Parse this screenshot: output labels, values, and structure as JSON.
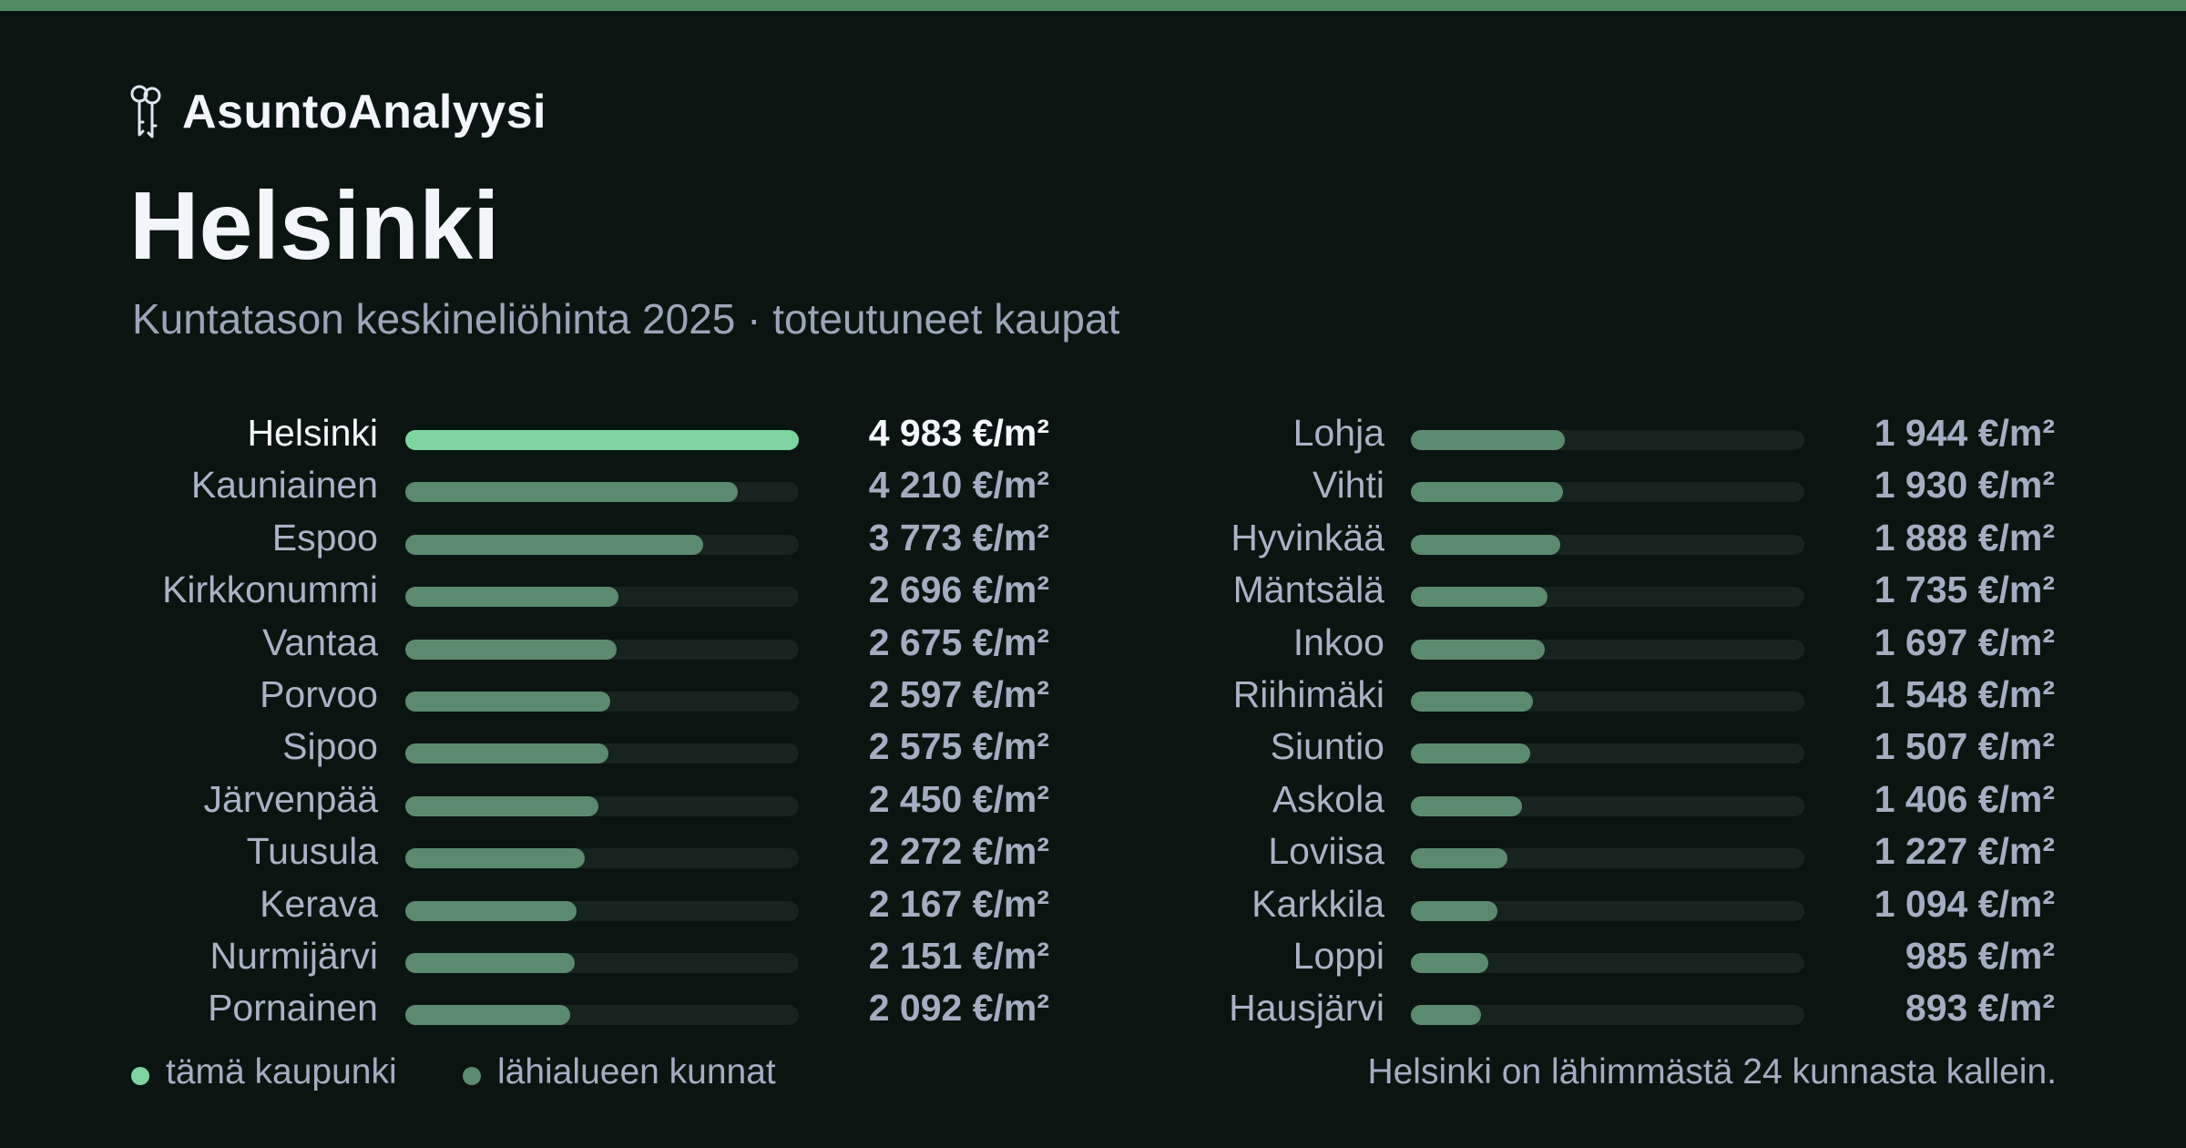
{
  "brand": {
    "name": "AsuntoAnalyysi",
    "icon": "keys-icon"
  },
  "title": "Helsinki",
  "subtitle": "Kuntatason keskineliöhinta 2025 · toteutuneet kaupat",
  "colors": {
    "background": "#0a1512",
    "top_bar": "#4f8a60",
    "highlight": "#7ed4a0",
    "others": "#5c8a6e",
    "track": "#16231f"
  },
  "chart_data": {
    "type": "bar",
    "orientation": "horizontal",
    "unit": "€/m²",
    "highlight": "Helsinki",
    "max": 4983,
    "categories": [
      "Helsinki",
      "Kauniainen",
      "Espoo",
      "Kirkkonummi",
      "Vantaa",
      "Porvoo",
      "Sipoo",
      "Järvenpää",
      "Tuusula",
      "Kerava",
      "Nurmijärvi",
      "Pornainen",
      "Lohja",
      "Vihti",
      "Hyvinkää",
      "Mäntsälä",
      "Inkoo",
      "Riihimäki",
      "Siuntio",
      "Askola",
      "Loviisa",
      "Karkkila",
      "Loppi",
      "Hausjärvi"
    ],
    "values": [
      4983,
      4210,
      3773,
      2696,
      2675,
      2597,
      2575,
      2450,
      2272,
      2167,
      2151,
      2092,
      1944,
      1930,
      1888,
      1735,
      1697,
      1548,
      1507,
      1406,
      1227,
      1094,
      985,
      893
    ],
    "labels": [
      "4 983 €/m²",
      "4 210 €/m²",
      "3 773 €/m²",
      "2 696 €/m²",
      "2 675 €/m²",
      "2 597 €/m²",
      "2 575 €/m²",
      "2 450 €/m²",
      "2 272 €/m²",
      "2 167 €/m²",
      "2 151 €/m²",
      "2 092 €/m²",
      "1 944 €/m²",
      "1 930 €/m²",
      "1 888 €/m²",
      "1 735 €/m²",
      "1 697 €/m²",
      "1 548 €/m²",
      "1 507 €/m²",
      "1 406 €/m²",
      "1 227 €/m²",
      "1 094 €/m²",
      "985 €/m²",
      "893 €/m²"
    ]
  },
  "legend": {
    "this_city": "tämä kaupunki",
    "nearby": "lähialueen kunnat"
  },
  "footnote": "Helsinki on lähimmästä 24 kunnasta kallein."
}
